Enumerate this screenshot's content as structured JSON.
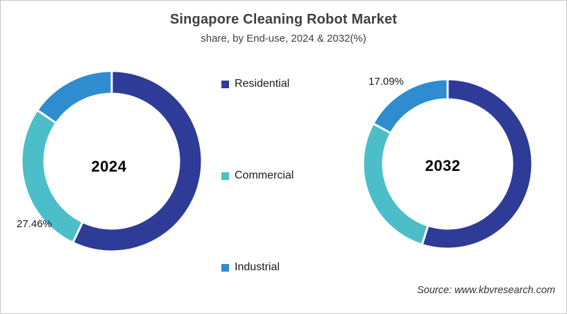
{
  "title": "Singapore Cleaning Robot Market",
  "subtitle": "share, by End-use, 2024 & 2032(%)",
  "source": "Source: www.kbvresearch.com",
  "colors": {
    "residential": "#2E3B97",
    "commercial": "#4BBEC9",
    "industrial": "#2E8CCF",
    "title_text": "#404040",
    "label_text": "#1a1a1a"
  },
  "legend": {
    "position": "center-between-charts",
    "items": [
      {
        "label": "Residential",
        "color": "#2E3B97"
      },
      {
        "label": "Commercial",
        "color": "#4BBEC9"
      },
      {
        "label": "Industrial",
        "color": "#2E8CCF"
      }
    ]
  },
  "chart_data": [
    {
      "type": "pie",
      "subtype": "donut",
      "center_label": "2024",
      "categories": [
        "Residential",
        "Commercial",
        "Industrial"
      ],
      "values": [
        57.1,
        27.46,
        15.44
      ],
      "segment_colors": [
        "#2E3B97",
        "#4BBEC9",
        "#2E8CCF"
      ],
      "unit": "%",
      "start_angle_deg": 0,
      "direction": "clockwise",
      "labeled_slice": {
        "category": "Commercial",
        "text": "27.46%",
        "position": "outside-lower-left"
      }
    },
    {
      "type": "pie",
      "subtype": "donut",
      "center_label": "2032",
      "categories": [
        "Residential",
        "Commercial",
        "Industrial"
      ],
      "values": [
        54.9,
        28.01,
        17.09
      ],
      "segment_colors": [
        "#2E3B97",
        "#4BBEC9",
        "#2E8CCF"
      ],
      "unit": "%",
      "start_angle_deg": 0,
      "direction": "clockwise",
      "labeled_slice": {
        "category": "Industrial",
        "text": "17.09%",
        "position": "outside-upper-left"
      }
    }
  ]
}
